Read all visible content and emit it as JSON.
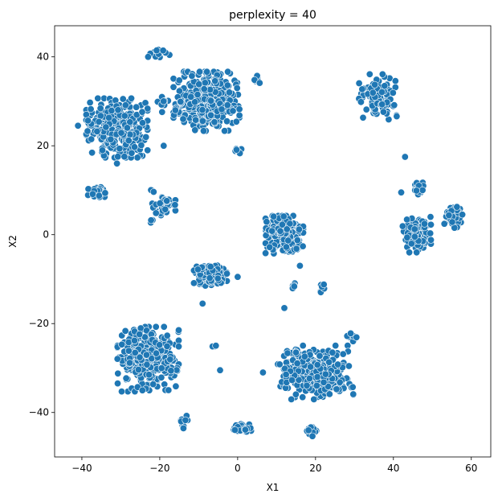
{
  "chart_data": {
    "type": "scatter",
    "title": "perplexity = 40",
    "xlabel": "X1",
    "ylabel": "X2",
    "xlim": [
      -47,
      65
    ],
    "ylim": [
      -50,
      47
    ],
    "xticks": [
      -40,
      -20,
      0,
      20,
      40,
      60
    ],
    "yticks": [
      -40,
      -20,
      0,
      20,
      40
    ],
    "xtick_labels": [
      "−40",
      "−20",
      "0",
      "20",
      "40",
      "60"
    ],
    "ytick_labels": [
      "−40",
      "−20",
      "0",
      "20",
      "40"
    ],
    "grid": false,
    "legend": "none",
    "marker_color": "#1f77b4",
    "marker_edge_color": "#ffffff",
    "clusters": [
      {
        "center": [
          -31,
          24
        ],
        "spread": [
          6.5,
          5.5
        ],
        "count": 330
      },
      {
        "center": [
          -8,
          30
        ],
        "spread": [
          7.0,
          5.5
        ],
        "count": 380
      },
      {
        "center": [
          -20,
          41
        ],
        "spread": [
          2.2,
          1.0
        ],
        "count": 14
      },
      {
        "center": [
          -19,
          30
        ],
        "spread": [
          1.4,
          2.0
        ],
        "count": 9
      },
      {
        "center": [
          5,
          35
        ],
        "spread": [
          1.0,
          0.8
        ],
        "count": 6
      },
      {
        "center": [
          0,
          19
        ],
        "spread": [
          1.0,
          0.8
        ],
        "count": 6
      },
      {
        "center": [
          -36,
          9.5
        ],
        "spread": [
          2.0,
          1.4
        ],
        "count": 30
      },
      {
        "center": [
          -19,
          6.5
        ],
        "spread": [
          2.5,
          2.0
        ],
        "count": 45
      },
      {
        "center": [
          -22,
          3
        ],
        "spread": [
          0.5,
          0.4
        ],
        "count": 3
      },
      {
        "center": [
          -22,
          10
        ],
        "spread": [
          0.6,
          0.4
        ],
        "count": 3
      },
      {
        "center": [
          12,
          0
        ],
        "spread": [
          4.0,
          3.5
        ],
        "count": 260
      },
      {
        "center": [
          14.5,
          -11.5
        ],
        "spread": [
          0.8,
          0.6
        ],
        "count": 5
      },
      {
        "center": [
          22,
          -11.5
        ],
        "spread": [
          0.8,
          1.2
        ],
        "count": 7
      },
      {
        "center": [
          -7,
          -9
        ],
        "spread": [
          3.5,
          2.2
        ],
        "count": 120
      },
      {
        "center": [
          -23,
          -28
        ],
        "spread": [
          6.5,
          6.0
        ],
        "count": 330
      },
      {
        "center": [
          -14,
          -42
        ],
        "spread": [
          1.0,
          2.0
        ],
        "count": 9
      },
      {
        "center": [
          20,
          -31
        ],
        "spread": [
          8.0,
          5.0
        ],
        "count": 340
      },
      {
        "center": [
          19,
          -44
        ],
        "spread": [
          1.6,
          1.1
        ],
        "count": 14
      },
      {
        "center": [
          1,
          -43.5
        ],
        "spread": [
          2.2,
          1.0
        ],
        "count": 38
      },
      {
        "center": [
          -6,
          -25
        ],
        "spread": [
          0.5,
          0.3
        ],
        "count": 3
      },
      {
        "center": [
          29,
          -23
        ],
        "spread": [
          1.5,
          0.8
        ],
        "count": 8
      },
      {
        "center": [
          36,
          31
        ],
        "spread": [
          4.0,
          4.2
        ],
        "count": 95
      },
      {
        "center": [
          46.5,
          10.5
        ],
        "spread": [
          1.2,
          1.3
        ],
        "count": 32
      },
      {
        "center": [
          46,
          0
        ],
        "spread": [
          3.0,
          3.3
        ],
        "count": 95
      },
      {
        "center": [
          55.5,
          4
        ],
        "spread": [
          2.0,
          2.2
        ],
        "count": 45
      }
    ],
    "points": [
      [
        -23,
        40
      ],
      [
        -12,
        31
      ],
      [
        -16,
        28
      ],
      [
        -19,
        20
      ],
      [
        -14,
        26
      ],
      [
        -9,
        -15.5
      ],
      [
        0,
        -9.5
      ],
      [
        -4.5,
        -30.5
      ],
      [
        6.5,
        -31
      ],
      [
        12,
        -16.5
      ],
      [
        16,
        -7
      ],
      [
        43,
        17.5
      ],
      [
        42,
        9.5
      ],
      [
        -41,
        24.5
      ],
      [
        -31,
        16
      ]
    ]
  }
}
